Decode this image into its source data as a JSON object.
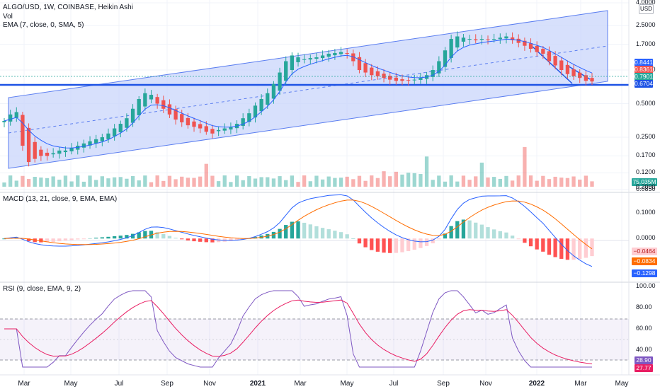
{
  "header": {
    "symbol_line": "ALGO/USD, 1W, COINBASE, Heikin Ashi",
    "vol_label": "Vol",
    "ema_label": "EMA (7, close, 0, SMA, 5)",
    "macd_label": "MACD (13, 21, close, 9, EMA, EMA)",
    "rsi_label": "RSI (9, close, EMA, 9, 2)",
    "currency_button": "USD"
  },
  "colors": {
    "up": "#26a69a",
    "down": "#ef5350",
    "channel_fill": "#c9d6fb",
    "channel_line": "#5b7ef0",
    "support": "#1e53e5",
    "ema": "#2962ff",
    "macd": "#2962ff",
    "signal": "#ff6d00",
    "rsi": "#7e57c2",
    "rsi_ma": "#e91e63",
    "grid": "#f0f3fa"
  },
  "x_axis": {
    "labels": [
      "Mar",
      "May",
      "Jul",
      "Sep",
      "Nov",
      "2021",
      "Mar",
      "May",
      "Jul",
      "Sep",
      "Nov",
      "2022",
      "Mar",
      "May"
    ]
  },
  "price_axis": {
    "ticks": [
      "4.0000",
      "2.5000",
      "1.7000",
      "1.0000",
      "0.5000",
      "0.2500",
      "0.1700",
      "0.1200",
      "0.0850"
    ],
    "tags": [
      {
        "text": "0.8441",
        "color": "#2962ff"
      },
      {
        "text": "0.8361",
        "color": "#ef5350"
      },
      {
        "text": "0.7901",
        "color": "#26a69a"
      },
      {
        "text": "0.6704",
        "color": "#1e53e5"
      },
      {
        "text": "75.035M",
        "color": "#26a69a"
      }
    ]
  },
  "macd_axis": {
    "ticks": [
      "0.2000",
      "0.1000",
      "0.0000"
    ],
    "tags": [
      {
        "text": "−0.0464",
        "color": "#ffcdd2",
        "text_color": "#b71c1c"
      },
      {
        "text": "−0.0834",
        "color": "#ff6d00"
      },
      {
        "text": "−0.1298",
        "color": "#2962ff"
      }
    ]
  },
  "rsi_axis": {
    "ticks": [
      "100.00",
      "80.00",
      "60.00",
      "40.00"
    ],
    "tags": [
      {
        "text": "28.90",
        "color": "#7e57c2"
      },
      {
        "text": "27.77",
        "color": "#e91e63"
      }
    ]
  },
  "chart_data": {
    "type": "candlestick",
    "title": "ALGO/USD, 1W, COINBASE, Heikin Ashi",
    "y_scale": "log",
    "price_ylim": [
      0.085,
      4.0
    ],
    "series": [
      {
        "name": "ALGO/USD Heikin Ashi close",
        "values": [
          0.35,
          0.4,
          0.42,
          0.21,
          0.15,
          0.16,
          0.17,
          0.17,
          0.18,
          0.19,
          0.19,
          0.2,
          0.21,
          0.22,
          0.23,
          0.24,
          0.25,
          0.27,
          0.3,
          0.33,
          0.37,
          0.45,
          0.55,
          0.62,
          0.6,
          0.5,
          0.45,
          0.4,
          0.36,
          0.34,
          0.32,
          0.31,
          0.3,
          0.28,
          0.27,
          0.29,
          0.3,
          0.31,
          0.33,
          0.37,
          0.41,
          0.48,
          0.55,
          0.62,
          0.75,
          0.95,
          1.2,
          1.35,
          1.3,
          1.25,
          1.28,
          1.3,
          1.35,
          1.4,
          1.42,
          1.45,
          1.4,
          1.2,
          1.0,
          0.95,
          0.9,
          0.88,
          0.85,
          0.82,
          0.8,
          0.8,
          0.81,
          0.82,
          0.85,
          0.9,
          1.0,
          1.2,
          1.5,
          1.9,
          2.0,
          1.95,
          1.9,
          1.85,
          1.9,
          1.88,
          1.9,
          1.95,
          2.0,
          1.85,
          1.75,
          1.65,
          1.55,
          1.45,
          1.4,
          1.2,
          1.1,
          1.0,
          0.92,
          0.88,
          0.85,
          0.8,
          0.79
        ]
      },
      {
        "name": "EMA (7, close, 0, SMA, 5)",
        "value": 0.8441
      },
      {
        "name": "Vol",
        "value": "75.035M"
      },
      {
        "name": "MACD",
        "value": -0.1298
      },
      {
        "name": "Signal",
        "value": -0.0834
      },
      {
        "name": "Histogram",
        "value": -0.0464
      },
      {
        "name": "RSI",
        "value": 28.9
      },
      {
        "name": "RSI MA",
        "value": 27.77
      }
    ],
    "last_close": 0.7901,
    "previous_close": 0.8361,
    "support_level": 0.6704,
    "macd_ylim": [
      -0.16,
      0.2
    ],
    "rsi_ylim": [
      20,
      100
    ],
    "rsi_bands": [
      30,
      70
    ]
  }
}
